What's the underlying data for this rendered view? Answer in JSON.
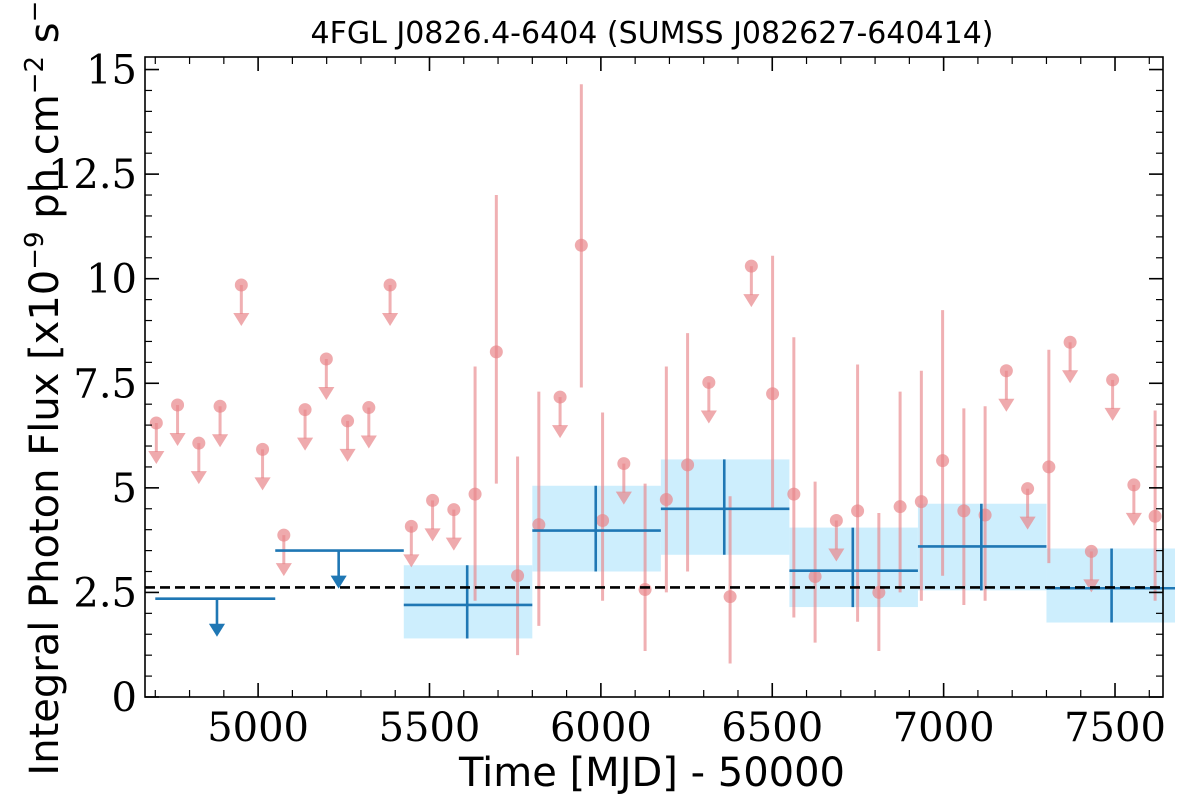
{
  "chart_data": {
    "type": "scatter",
    "title": "4FGL J0826.4-6404 (SUMSS J082627-640414)",
    "xlabel": "Time [MJD] - 50000",
    "ylabel": "Integral Photon Flux [x10^-9 ph cm^-2 s^-1]",
    "ylabel_parts": {
      "base": "Integral Photon Flux [x10",
      "exp1": "−9",
      "mid": " ph cm",
      "exp2": "−2",
      "mid2": " s",
      "exp3": "−1",
      "end": "]"
    },
    "xlim": [
      4670,
      7640
    ],
    "ylim": [
      0,
      15.3
    ],
    "xticks": [
      5000,
      5500,
      6000,
      6500,
      7000,
      7500
    ],
    "xtick_labels": [
      "5000",
      "5500",
      "6000",
      "6500",
      "7000",
      "7500"
    ],
    "yticks": [
      0,
      2.5,
      5,
      7.5,
      10,
      12.5,
      15
    ],
    "ytick_labels": [
      "0",
      "2.5",
      "5",
      "7.5",
      "10",
      "12.5",
      "15"
    ],
    "grid": false,
    "mean_level": 2.62,
    "colors": {
      "short_bins": "#e8868a",
      "long_bins": "#1f77b4",
      "long_band": "#cdeefd",
      "mean_line": "#000000"
    },
    "short_bins": {
      "upper_limits": [
        {
          "x": 4703,
          "y": 6.55
        },
        {
          "x": 4765,
          "y": 6.98
        },
        {
          "x": 4827,
          "y": 6.07
        },
        {
          "x": 4889,
          "y": 6.95
        },
        {
          "x": 5013,
          "y": 5.92
        },
        {
          "x": 5075,
          "y": 3.87
        },
        {
          "x": 5137,
          "y": 6.87
        },
        {
          "x": 5199,
          "y": 8.08
        },
        {
          "x": 5261,
          "y": 6.6
        },
        {
          "x": 5323,
          "y": 6.92
        },
        {
          "x": 4951,
          "y": 9.85
        },
        {
          "x": 5385,
          "y": 9.85
        },
        {
          "x": 5447,
          "y": 4.08
        },
        {
          "x": 5509,
          "y": 4.7
        },
        {
          "x": 5571,
          "y": 4.48
        },
        {
          "x": 5881,
          "y": 7.17
        },
        {
          "x": 6067,
          "y": 5.58
        },
        {
          "x": 6315,
          "y": 7.52
        },
        {
          "x": 6439,
          "y": 10.3
        },
        {
          "x": 6687,
          "y": 4.22
        },
        {
          "x": 7183,
          "y": 7.8
        },
        {
          "x": 7245,
          "y": 4.98
        },
        {
          "x": 7369,
          "y": 8.48
        },
        {
          "x": 7431,
          "y": 3.48
        },
        {
          "x": 7493,
          "y": 7.58
        },
        {
          "x": 7555,
          "y": 5.07
        }
      ],
      "detections": [
        {
          "x": 5633,
          "y": 4.85,
          "lo": 2.3,
          "hi": 7.9
        },
        {
          "x": 5695,
          "y": 8.25,
          "lo": 5.1,
          "hi": 12.0
        },
        {
          "x": 5757,
          "y": 2.9,
          "lo": 1.0,
          "hi": 5.75
        },
        {
          "x": 5819,
          "y": 4.12,
          "lo": 1.7,
          "hi": 7.3
        },
        {
          "x": 5943,
          "y": 10.8,
          "lo": 7.4,
          "hi": 14.65
        },
        {
          "x": 6005,
          "y": 4.22,
          "lo": 2.3,
          "hi": 6.8
        },
        {
          "x": 6129,
          "y": 2.57,
          "lo": 1.1,
          "hi": 5.1
        },
        {
          "x": 6191,
          "y": 4.72,
          "lo": 2.5,
          "hi": 7.9
        },
        {
          "x": 6253,
          "y": 5.55,
          "lo": 3.0,
          "hi": 8.7
        },
        {
          "x": 6377,
          "y": 2.4,
          "lo": 0.8,
          "hi": 4.8
        },
        {
          "x": 6501,
          "y": 7.25,
          "lo": 4.5,
          "hi": 10.55
        },
        {
          "x": 6563,
          "y": 4.85,
          "lo": 1.9,
          "hi": 8.6
        },
        {
          "x": 6625,
          "y": 2.88,
          "lo": 1.3,
          "hi": 5.15
        },
        {
          "x": 6749,
          "y": 4.45,
          "lo": 1.8,
          "hi": 7.95
        },
        {
          "x": 6811,
          "y": 2.5,
          "lo": 1.1,
          "hi": 4.4
        },
        {
          "x": 6873,
          "y": 4.55,
          "lo": 2.5,
          "hi": 7.3
        },
        {
          "x": 6935,
          "y": 4.67,
          "lo": 2.3,
          "hi": 7.8
        },
        {
          "x": 6997,
          "y": 5.65,
          "lo": 2.9,
          "hi": 9.25
        },
        {
          "x": 7059,
          "y": 4.45,
          "lo": 2.2,
          "hi": 6.9
        },
        {
          "x": 7121,
          "y": 4.35,
          "lo": 2.3,
          "hi": 6.95
        },
        {
          "x": 7307,
          "y": 5.5,
          "lo": 3.2,
          "hi": 8.3
        },
        {
          "x": 7617,
          "y": 4.32,
          "lo": 2.3,
          "hi": 6.85
        }
      ]
    },
    "long_bins": {
      "upper_limits": [
        {
          "x0": 4700,
          "x1": 5050,
          "y": 2.35,
          "xc": 4880
        },
        {
          "x0": 5050,
          "x1": 5425,
          "y": 3.5,
          "xc": 5235
        }
      ],
      "detections": [
        {
          "x0": 5425,
          "x1": 5800,
          "xc": 5610,
          "y": 2.2,
          "lo": 1.4,
          "hi": 3.15
        },
        {
          "x0": 5800,
          "x1": 6175,
          "xc": 5985,
          "y": 3.98,
          "lo": 3.0,
          "hi": 5.05
        },
        {
          "x0": 6175,
          "x1": 6550,
          "xc": 6360,
          "y": 4.5,
          "lo": 3.4,
          "hi": 5.68
        },
        {
          "x0": 6550,
          "x1": 6925,
          "xc": 6735,
          "y": 3.02,
          "lo": 2.15,
          "hi": 4.05
        },
        {
          "x0": 6925,
          "x1": 7300,
          "xc": 7110,
          "y": 3.6,
          "lo": 2.55,
          "hi": 4.62
        },
        {
          "x0": 7300,
          "x1": 7675,
          "xc": 7490,
          "y": 2.6,
          "lo": 1.78,
          "hi": 3.55
        }
      ]
    }
  }
}
